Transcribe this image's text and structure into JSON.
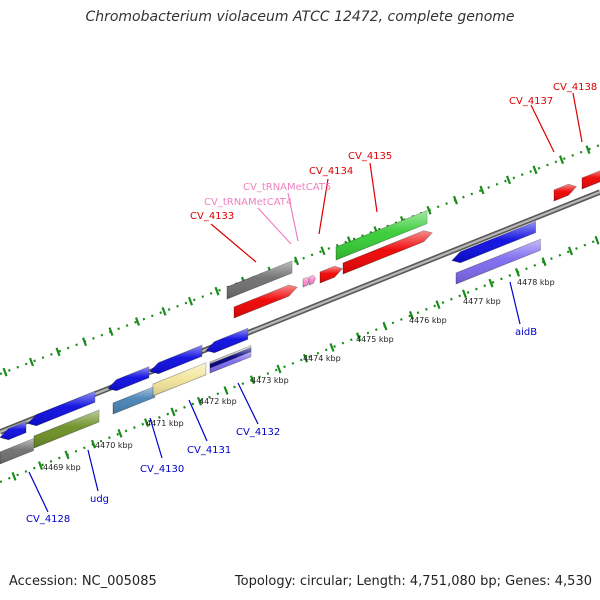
{
  "title": "Chromobacterium violaceum ATCC 12472, complete genome",
  "footer": {
    "accession": "Accession: NC_005085",
    "topology": "Topology: circular; Length: 4,751,080 bp; Genes: 4,530"
  },
  "colors": {
    "backbone": "#8c8c8c",
    "tick": "#1a8c1a",
    "upper_label": "#dd0000",
    "trna_label": "#f080c0",
    "lower_label": "#0000cc",
    "blue": "#0a0ae0",
    "red": "#ee0000",
    "green": "#33cc33",
    "gray": "#6e6e6e",
    "olive": "#6b8e23",
    "steelblue": "#4682b4",
    "khaki": "#f3e59a",
    "slateblue": "#7b68ee",
    "pink": "#ff88cc",
    "navy": "#00007f"
  },
  "scale_labels": [
    "4469 kbp",
    "4470 kbp",
    "4471 kbp",
    "4472 kbp",
    "4473 kbp",
    "4474 kbp",
    "4475 kbp",
    "4476 kbp",
    "4477 kbp",
    "4478 kbp"
  ],
  "gene_labels": {
    "cv4128": "CV_4128",
    "udg": "udg",
    "cv4130": "CV_4130",
    "cv4131": "CV_4131",
    "cv4132": "CV_4132",
    "aidb": "aidB",
    "cv4133": "CV_4133",
    "trna4": "CV_tRNAMetCAT4",
    "trna5": "CV_tRNAMetCAT5",
    "cv4134": "CV_4134",
    "cv4135": "CV_4135",
    "cv4137": "CV_4137",
    "cv4138": "CV_4138"
  }
}
